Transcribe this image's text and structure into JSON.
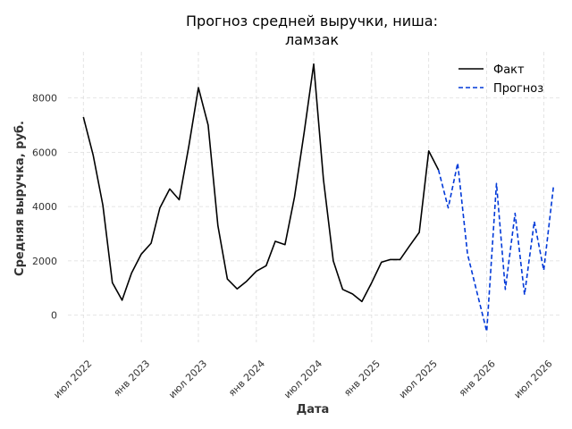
{
  "chart_data": {
    "type": "line",
    "title_lines": [
      "Прогноз средней выручки, ниша:",
      "ламзак"
    ],
    "xlabel": "Дата",
    "ylabel": "Средняя выручка, руб.",
    "x_ticks": [
      "июл 2022",
      "янв 2023",
      "июл 2023",
      "янв 2024",
      "июл 2024",
      "янв 2025",
      "июл 2025",
      "янв 2026",
      "июл 2026"
    ],
    "y_ticks": [
      "0",
      "2000",
      "4000",
      "6000",
      "8000"
    ],
    "y_tick_values": [
      0,
      2000,
      4000,
      6000,
      8000
    ],
    "ylim": [
      -1000,
      9700
    ],
    "xlim": [
      "2022-05-13",
      "2026-08-20"
    ],
    "grid": true,
    "legend_position": "top-right",
    "colors": {
      "fact": "#000000",
      "forecast": "#0039d8"
    },
    "series": [
      {
        "name": "Факт",
        "style": "solid",
        "x": [
          "2022-07-01",
          "2022-08-01",
          "2022-09-01",
          "2022-10-01",
          "2022-11-01",
          "2022-12-01",
          "2023-01-01",
          "2023-02-01",
          "2023-03-01",
          "2023-04-01",
          "2023-05-01",
          "2023-06-01",
          "2023-07-01",
          "2023-08-01",
          "2023-09-01",
          "2023-10-01",
          "2023-11-01",
          "2023-12-01",
          "2024-01-01",
          "2024-02-01",
          "2024-03-01",
          "2024-04-01",
          "2024-05-01",
          "2024-06-01",
          "2024-07-01",
          "2024-08-01",
          "2024-09-01",
          "2024-10-01",
          "2024-11-01",
          "2024-12-01",
          "2025-01-01",
          "2025-02-01",
          "2025-03-01",
          "2025-04-01",
          "2025-05-01",
          "2025-06-01",
          "2025-07-01",
          "2025-08-01"
        ],
        "values": [
          7300,
          5900,
          4050,
          1200,
          550,
          1550,
          2250,
          2650,
          3950,
          4650,
          4250,
          6250,
          8380,
          7000,
          3300,
          1330,
          970,
          1250,
          1620,
          1820,
          2720,
          2600,
          4350,
          6750,
          9250,
          5000,
          2000,
          950,
          780,
          500,
          1200,
          1950,
          2050,
          2050,
          2550,
          3050,
          6050,
          5350
        ]
      },
      {
        "name": "Прогноз",
        "style": "dashed",
        "x": [
          "2025-08-01",
          "2025-09-01",
          "2025-10-01",
          "2025-11-01",
          "2025-12-01",
          "2026-01-01",
          "2026-02-01",
          "2026-03-01",
          "2026-04-01",
          "2026-05-01",
          "2026-06-01",
          "2026-07-01",
          "2026-08-01"
        ],
        "values": [
          5350,
          3950,
          5600,
          2250,
          850,
          -600,
          4850,
          950,
          3750,
          750,
          3450,
          1650,
          4750
        ]
      }
    ]
  }
}
